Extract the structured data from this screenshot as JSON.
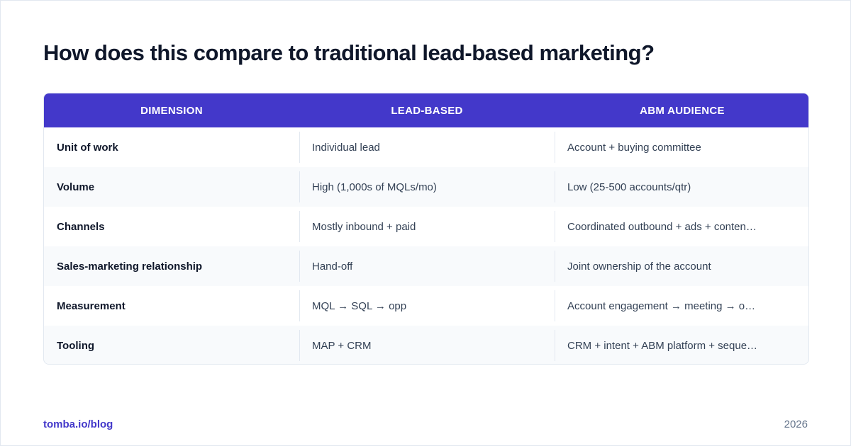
{
  "title": "How does this compare to traditional lead-based marketing?",
  "table": {
    "headers": [
      "DIMENSION",
      "LEAD-BASED",
      "ABM AUDIENCE"
    ],
    "rows": [
      [
        "Unit of work",
        "Individual lead",
        "Account + buying committee"
      ],
      [
        "Volume",
        "High (1,000s of MQLs/mo)",
        "Low (25-500 accounts/qtr)"
      ],
      [
        "Channels",
        "Mostly inbound + paid",
        "Coordinated outbound + ads + conten…"
      ],
      [
        "Sales-marketing relationship",
        "Hand-off",
        "Joint ownership of the account"
      ],
      [
        "Measurement",
        "MQL → SQL → opp",
        "Account engagement → meeting → opp …"
      ],
      [
        "Tooling",
        "MAP + CRM",
        "CRM + intent + ABM platform + seque…"
      ]
    ]
  },
  "footer": {
    "source": "tomba.io/blog",
    "year": "2026"
  },
  "colors": {
    "header_bg": "#4338ca",
    "accent": "#4338ca",
    "alt_row_bg": "#f8fafc"
  }
}
